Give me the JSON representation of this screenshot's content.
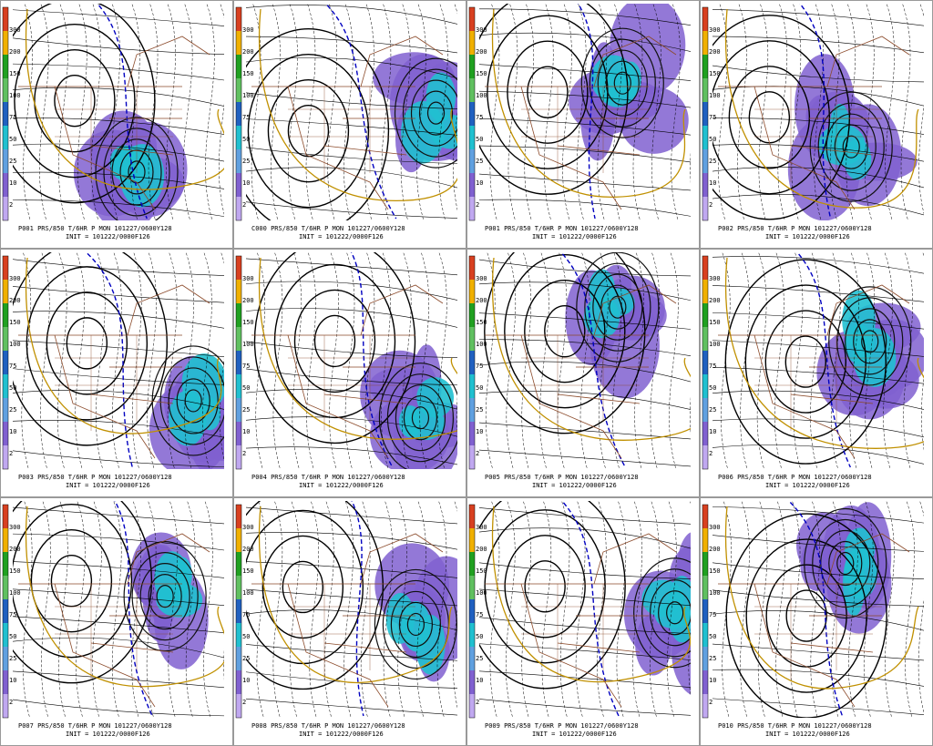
{
  "panels": [
    {
      "caption": "P001 PRS/850 T/6HR P MON 101227/0600Y128",
      "init": "INIT = 101222/0000F126"
    },
    {
      "caption": "C000 PRS/850 T/6HR P MON 101227/0600Y128",
      "init": "INIT = 101222/0000F126"
    },
    {
      "caption": "P001 PRS/850 T/6HR P MON 101227/0600Y128",
      "init": "INIT = 101222/0000F126"
    },
    {
      "caption": "P002 PRS/850 T/6HR P MON 101227/0600Y128",
      "init": "INIT = 101222/0000F126"
    },
    {
      "caption": "P003 PRS/850 T/6HR P MON 101227/0600Y128",
      "init": "INIT = 101222/0000F126"
    },
    {
      "caption": "P004 PRS/850 T/6HR P MON 101227/0600Y128",
      "init": "INIT = 101222/0000F126"
    },
    {
      "caption": "P005 PRS/850 T/6HR P MON 101227/0600Y128",
      "init": "INIT = 101222/0000F126"
    },
    {
      "caption": "P006 PRS/850 T/6HR P MON 101227/0600Y128",
      "init": "INIT = 101222/0000F126"
    },
    {
      "caption": "P007 PRS/850 T/6HR P MON 101227/0600Y128",
      "init": "INIT = 101222/0000F126"
    },
    {
      "caption": "P008 PRS/850 T/6HR P MON 101227/0600Y128",
      "init": "INIT = 101222/0000F126"
    },
    {
      "caption": "P009 PRS/850 T/6HR P MON 101227/0600Y128",
      "init": "INIT = 101222/0000F126"
    },
    {
      "caption": "P010 PRS/850 T/6HR P MON 101227/0600Y128",
      "init": "INIT = 101222/0000F126"
    }
  ],
  "colorbar": {
    "labels": [
      "300",
      "200",
      "150",
      "100",
      "75",
      "50",
      "25",
      "10",
      "2"
    ],
    "colors": [
      "#d84020",
      "#f0b000",
      "#20a020",
      "#60c060",
      "#2060c0",
      "#20c0d0",
      "#60a0e0",
      "#8060d0",
      "#c0a8f0"
    ]
  }
}
